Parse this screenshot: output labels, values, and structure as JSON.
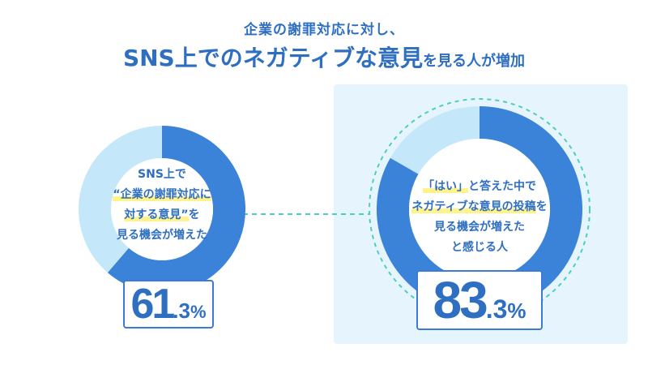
{
  "title": {
    "line1": "企業の謝罪対応に対し、",
    "line2_big": "SNS上でのネガティブな意見",
    "line2_small": "を見る人が増加"
  },
  "charts": [
    {
      "label_lines": [
        {
          "pre": "SNS上で",
          "hl": "",
          "post": ""
        },
        {
          "pre": "",
          "hl": "“企業の謝罪対応に",
          "post": ""
        },
        {
          "pre": "",
          "hl": "対する意見”",
          "post": "を"
        },
        {
          "pre": "見る機会が増えた",
          "hl": "",
          "post": ""
        }
      ],
      "value_int": "61",
      "value_dec": ".3",
      "unit": "%"
    },
    {
      "label_lines": [
        {
          "pre": "",
          "hl": "「はい」",
          "post": "と答えた中で"
        },
        {
          "pre": "",
          "hl": "ネガティブな意見の投稿",
          "post": "を"
        },
        {
          "pre": "見る機会が増えた",
          "hl": "",
          "post": ""
        },
        {
          "pre": "と感じる人",
          "hl": "",
          "post": ""
        }
      ],
      "value_int": "83",
      "value_dec": ".3",
      "unit": "%"
    }
  ],
  "chart_data": [
    {
      "type": "pie",
      "title": "",
      "values": [
        61.3,
        38.7
      ],
      "colors": [
        "#3a83d9",
        "#c4e8fa"
      ],
      "unit": "%"
    },
    {
      "type": "pie",
      "title": "",
      "values": [
        83.3,
        16.7
      ],
      "colors": [
        "#3a83d9",
        "#c4e8fa"
      ],
      "unit": "%"
    }
  ],
  "colors": {
    "accent": "#3a83d9",
    "track": "#c4e8fa",
    "panel": "#e6f5fd",
    "connector": "#4fcfb9",
    "highlight": "#fff38a"
  }
}
